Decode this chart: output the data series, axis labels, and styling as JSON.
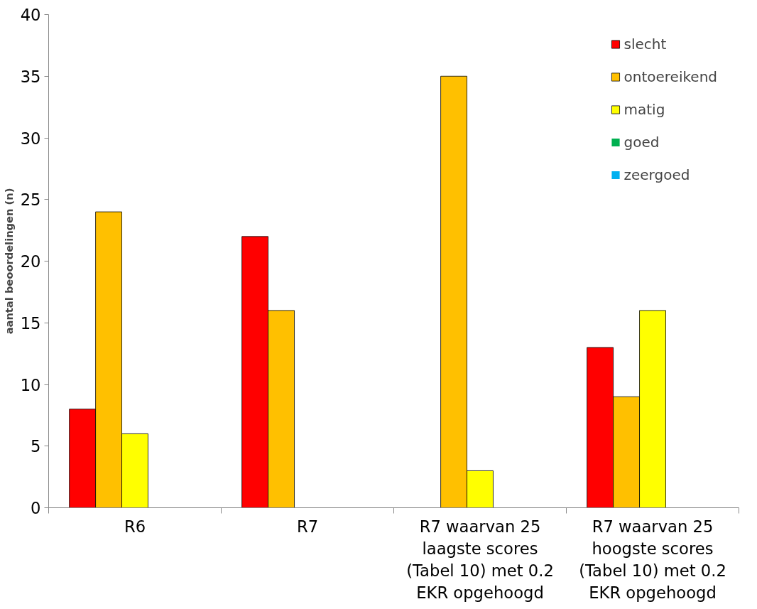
{
  "chart_data": {
    "type": "bar",
    "ylabel": "aantal beoordelingen (n)",
    "categories": [
      "R6",
      "R7",
      "R7 waarvan 25 laagste scores (Tabel 10) met 0.2 EKR opgehoogd",
      "R7 waarvan 25 hoogste scores (Tabel 10) met 0.2 EKR opgehoogd"
    ],
    "series": [
      {
        "name": "slecht",
        "color": "#ff0000",
        "values": [
          8,
          22,
          0,
          13
        ]
      },
      {
        "name": "ontoereikend",
        "color": "#ffc000",
        "values": [
          24,
          16,
          35,
          9
        ]
      },
      {
        "name": "matig",
        "color": "#ffff00",
        "values": [
          6,
          0,
          3,
          16
        ]
      },
      {
        "name": "goed",
        "color": "#00b050",
        "values": [
          0,
          0,
          0,
          0
        ]
      },
      {
        "name": "zeergoed",
        "color": "#00b0f0",
        "values": [
          0,
          0,
          0,
          0
        ]
      }
    ],
    "ylim": [
      0,
      40
    ],
    "yticks": [
      0,
      5,
      10,
      15,
      20,
      25,
      30,
      35,
      40
    ],
    "grid": false,
    "legend": "top right"
  }
}
